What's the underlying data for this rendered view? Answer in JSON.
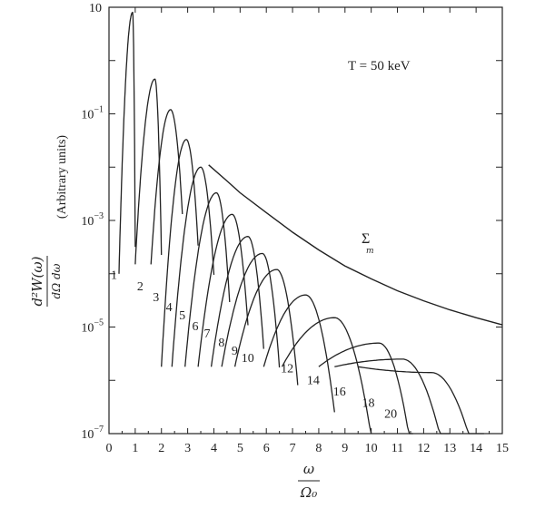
{
  "chart_data": {
    "type": "line",
    "title": "",
    "annotation": "T = 50 keV",
    "sum_label": "Σ",
    "sum_subscript": "m",
    "xlabel_num": "ω",
    "xlabel_den": "Ω₀",
    "ylabel_expr_num": "d²W(ω)",
    "ylabel_expr_den": "dΩ dω",
    "ylabel_units": "(Arbitrary units)",
    "xlim": [
      0,
      15
    ],
    "ylim": [
      1e-07,
      10
    ],
    "yscale": "log",
    "x_ticks": [
      "0",
      "1",
      "2",
      "3",
      "4",
      "5",
      "6",
      "7",
      "8",
      "9",
      "10",
      "11",
      "12",
      "13",
      "14",
      "15"
    ],
    "y_ticks": [
      {
        "value": 10,
        "base": "10",
        "exp": ""
      },
      {
        "value": 0.1,
        "base": "10",
        "exp": "−1"
      },
      {
        "value": 0.001,
        "base": "10",
        "exp": "−3"
      },
      {
        "value": 1e-05,
        "base": "10",
        "exp": "−5"
      },
      {
        "value": 1e-07,
        "base": "10",
        "exp": "−7"
      }
    ],
    "harmonics": [
      {
        "label": "1",
        "peak_x": 0.9,
        "peak_y": 8,
        "x_start": 0.38,
        "x_end": 1.0
      },
      {
        "label": "2",
        "peak_x": 1.75,
        "peak_y": 0.45,
        "x_start": 1.0,
        "x_end": 2.0
      },
      {
        "label": "3",
        "peak_x": 2.35,
        "peak_y": 0.12,
        "x_start": 1.6,
        "x_end": 2.8
      },
      {
        "label": "4",
        "peak_x": 2.95,
        "peak_y": 0.033,
        "x_start": 2.0,
        "x_end": 3.4
      },
      {
        "label": "5",
        "peak_x": 3.5,
        "peak_y": 0.01,
        "x_start": 2.4,
        "x_end": 4.0
      },
      {
        "label": "6",
        "peak_x": 4.1,
        "peak_y": 0.0033,
        "x_start": 2.9,
        "x_end": 4.6
      },
      {
        "label": "7",
        "peak_x": 4.7,
        "peak_y": 0.0013,
        "x_start": 3.4,
        "x_end": 5.3
      },
      {
        "label": "8",
        "peak_x": 5.3,
        "peak_y": 0.0005,
        "x_start": 3.9,
        "x_end": 5.9
      },
      {
        "label": "9",
        "peak_x": 5.85,
        "peak_y": 0.00024,
        "x_start": 4.3,
        "x_end": 6.5
      },
      {
        "label": "10",
        "peak_x": 6.4,
        "peak_y": 0.00012,
        "x_start": 4.8,
        "x_end": 7.2
      },
      {
        "label": "12",
        "peak_x": 7.5,
        "peak_y": 4e-05,
        "x_start": 5.9,
        "x_end": 8.6
      },
      {
        "label": "14",
        "peak_x": 8.6,
        "peak_y": 1.5e-05,
        "x_start": 6.6,
        "x_end": 10.0
      },
      {
        "label": "16",
        "peak_x": 10.3,
        "peak_y": 5e-06,
        "x_start": 8.0,
        "x_end": 11.6
      },
      {
        "label": "18",
        "peak_x": 11.2,
        "peak_y": 2.5e-06,
        "x_start": 8.6,
        "x_end": 13.0
      },
      {
        "label": "20",
        "peak_x": 12.3,
        "peak_y": 1.4e-06,
        "x_start": 9.5,
        "x_end": 14.3
      }
    ],
    "sum_curve": [
      [
        3.8,
        0.011
      ],
      [
        4.5,
        0.0055
      ],
      [
        5.0,
        0.0033
      ],
      [
        6.0,
        0.0014
      ],
      [
        7.0,
        0.0006
      ],
      [
        8.0,
        0.00028
      ],
      [
        9.0,
        0.00014
      ],
      [
        10.0,
        8e-05
      ],
      [
        11.0,
        4.8e-05
      ],
      [
        12.0,
        3.1e-05
      ],
      [
        13.0,
        2.1e-05
      ],
      [
        14.0,
        1.5e-05
      ],
      [
        15.0,
        1.1e-05
      ]
    ]
  }
}
